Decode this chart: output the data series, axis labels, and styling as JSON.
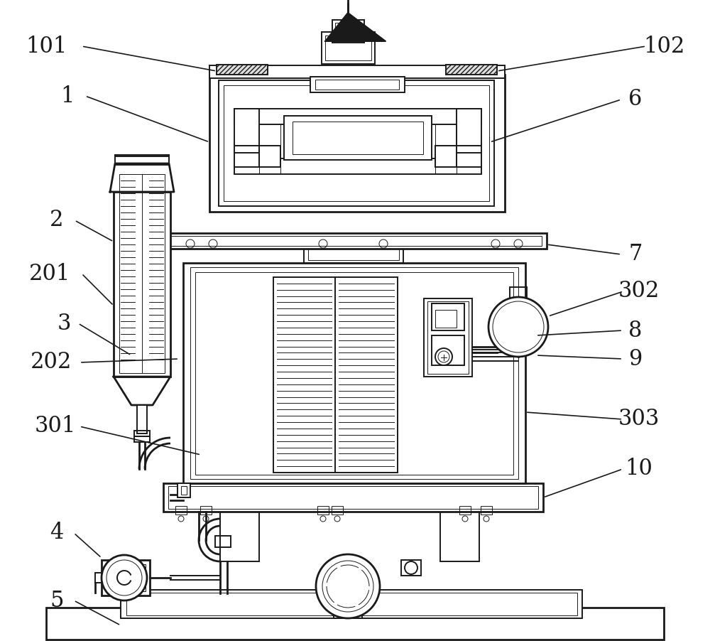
{
  "bg_color": "#ffffff",
  "lc": "#1a1a1a",
  "lw": 1.4,
  "lw_t": 0.7,
  "lw_th": 2.0,
  "fs": 22,
  "ann_color": "#1a1a1a"
}
